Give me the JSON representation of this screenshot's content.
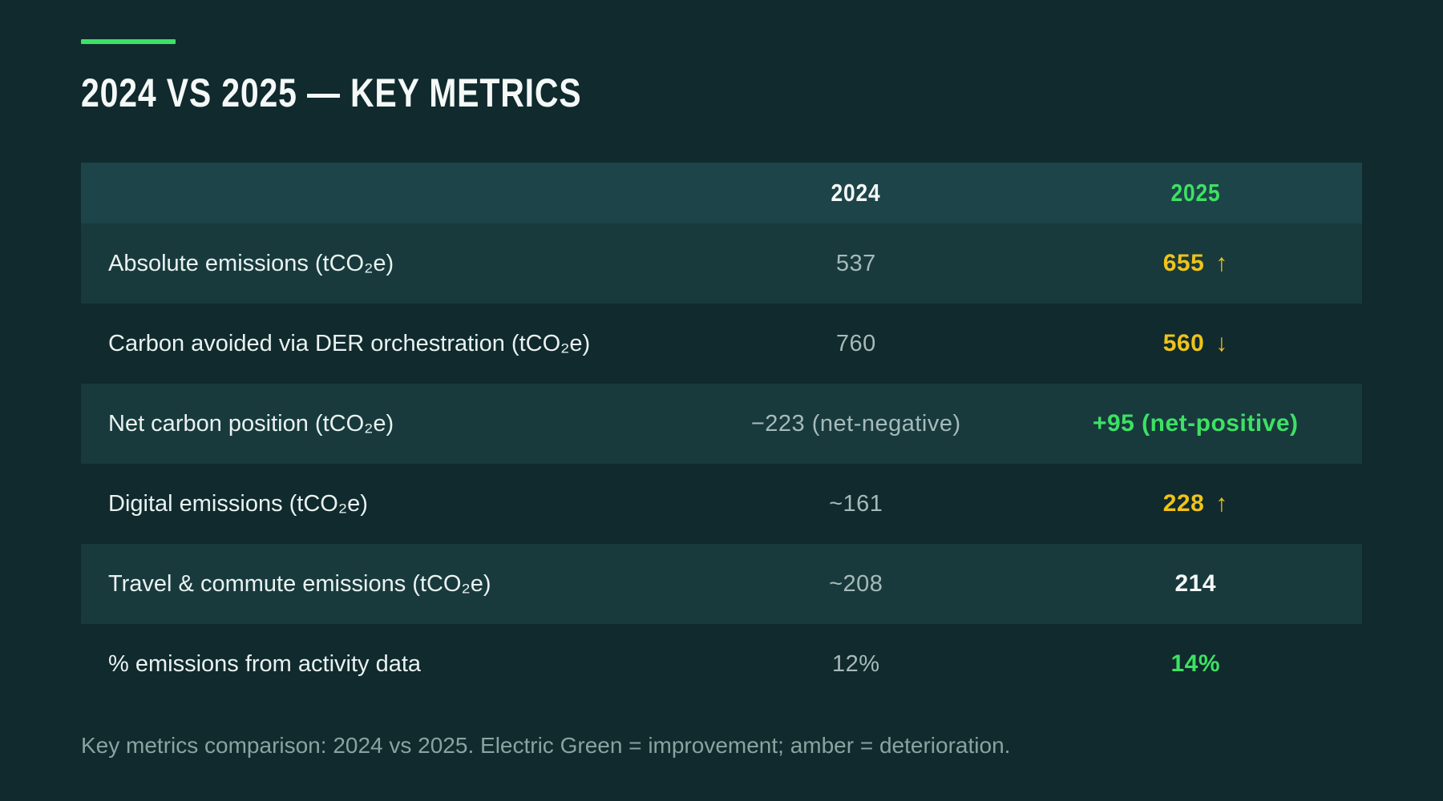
{
  "title": "2024 VS 2025 — KEY METRICS",
  "colors": {
    "background": "#102A2D",
    "header_row": "#1D4448",
    "electric_green": "#3DE163",
    "amber": "#EFC319"
  },
  "chart_data": {
    "type": "table",
    "title": "2024 VS 2025 — KEY METRICS",
    "columns": [
      "",
      "2024",
      "2025"
    ],
    "rows": [
      {
        "metric": "Absolute emissions (tCO₂e)",
        "y2024": "537",
        "y2025": "655",
        "arrow": "↑",
        "trend": "worse"
      },
      {
        "metric": "Carbon avoided via DER orchestration (tCO₂e)",
        "y2024": "760",
        "y2025": "560",
        "arrow": "↓",
        "trend": "worse"
      },
      {
        "metric": "Net carbon position (tCO₂e)",
        "y2024": "−223 (net-negative)",
        "y2025": "+95 (net-positive)",
        "arrow": "",
        "trend": "better"
      },
      {
        "metric": "Digital emissions (tCO₂e)",
        "y2024": "~161",
        "y2025": "228",
        "arrow": "↑",
        "trend": "worse"
      },
      {
        "metric": "Travel & commute emissions (tCO₂e)",
        "y2024": "~208",
        "y2025": "214",
        "arrow": "",
        "trend": "neutral"
      },
      {
        "metric": "% emissions from activity data",
        "y2024": "12%",
        "y2025": "14%",
        "arrow": "",
        "trend": "better"
      }
    ],
    "caption": "Key metrics comparison: 2024 vs 2025. Electric Green = improvement; amber = deterioration.",
    "legend": {
      "electric_green_means": "improvement",
      "amber_means": "deterioration"
    }
  }
}
